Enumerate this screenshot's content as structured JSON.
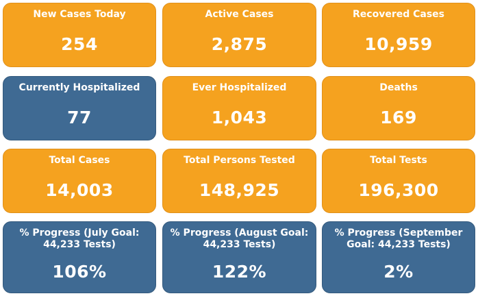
{
  "tiles": [
    {
      "label": "New Cases Today",
      "value": "254",
      "color": "#f5a21f"
    },
    {
      "label": "Active Cases",
      "value": "2,875",
      "color": "#f5a21f"
    },
    {
      "label": "Recovered Cases",
      "value": "10,959",
      "color": "#f5a21f"
    },
    {
      "label": "Currently Hospitalized",
      "value": "77",
      "color": "#3f6a93"
    },
    {
      "label": "Ever Hospitalized",
      "value": "1,043",
      "color": "#f5a21f"
    },
    {
      "label": "Deaths",
      "value": "169",
      "color": "#f5a21f"
    },
    {
      "label": "Total Cases",
      "value": "14,003",
      "color": "#f5a21f"
    },
    {
      "label": "Total Persons Tested",
      "value": "148,925",
      "color": "#f5a21f"
    },
    {
      "label": "Total Tests",
      "value": "196,300",
      "color": "#f5a21f"
    },
    {
      "label": "% Progress (July Goal: 44,233 Tests)",
      "value": "106%",
      "color": "#3f6a93"
    },
    {
      "label": "% Progress (August Goal: 44,233 Tests)",
      "value": "122%",
      "color": "#3f6a93"
    },
    {
      "label": "% Progress (September Goal: 44,233 Tests)",
      "value": "2%",
      "color": "#3f6a93"
    }
  ]
}
